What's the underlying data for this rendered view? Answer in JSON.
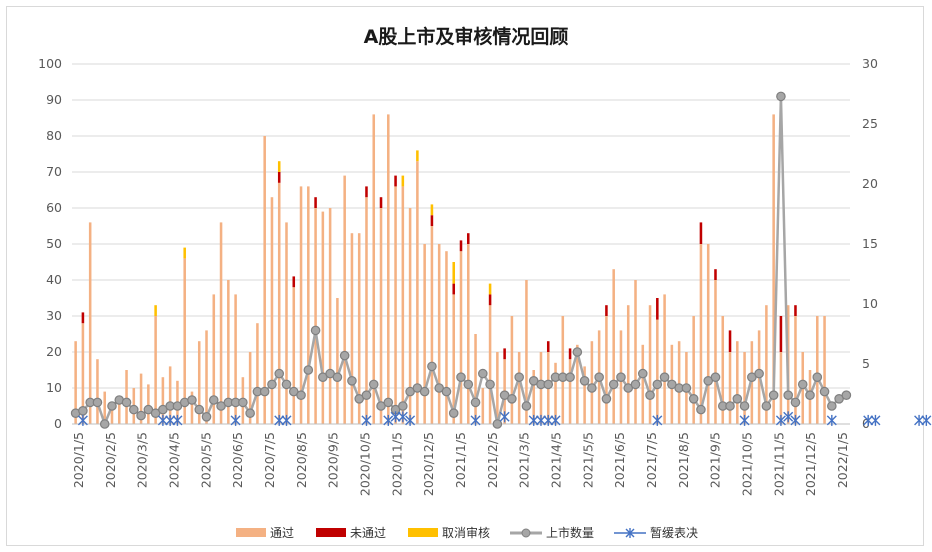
{
  "chart_data": {
    "type": "bar",
    "title": "A股上市及审核情况回顾",
    "ylim_left": [
      0,
      100
    ],
    "yticks_left": [
      "0",
      "10",
      "20",
      "30",
      "40",
      "50",
      "60",
      "70",
      "80",
      "90",
      "100"
    ],
    "ylim_right": [
      0,
      30
    ],
    "yticks_right": [
      "0",
      "5",
      "10",
      "15",
      "20",
      "25",
      "30"
    ],
    "x_tick_labels": [
      "2020/1/5",
      "2020/2/5",
      "2020/3/5",
      "2020/4/5",
      "2020/5/5",
      "2020/6/5",
      "2020/7/5",
      "2020/8/5",
      "2020/9/5",
      "2020/10/5",
      "2020/11/5",
      "2020/12/5",
      "2021/1/5",
      "2021/2/5",
      "2021/3/5",
      "2021/4/5",
      "2021/5/5",
      "2021/6/5",
      "2021/7/5",
      "2021/8/5",
      "2021/9/5",
      "2021/10/5",
      "2021/11/5",
      "2021/12/5",
      "2022/1/5"
    ],
    "grid": true,
    "legend_position": "bottom",
    "colors": {
      "pass": "#f4b183",
      "reject": "#c00000",
      "cancel": "#ffc000",
      "listing": "#a6a6a6",
      "postpone": "#4472c4"
    },
    "series": [
      {
        "name": "通过",
        "type": "bar",
        "axis": "left",
        "values": [
          23,
          28,
          56,
          18,
          9,
          6,
          6,
          15,
          10,
          14,
          11,
          30,
          13,
          16,
          12,
          46,
          9,
          23,
          26,
          36,
          56,
          40,
          36,
          13,
          20,
          28,
          80,
          63,
          67,
          56,
          38,
          66,
          66,
          60,
          59,
          60,
          35,
          69,
          53,
          53,
          63,
          86,
          60,
          86,
          66,
          66,
          60,
          73,
          50,
          55,
          50,
          48,
          36,
          48,
          50,
          25,
          10,
          33,
          20,
          18,
          30,
          20,
          40,
          15,
          20,
          20,
          17,
          30,
          18,
          22,
          16,
          23,
          26,
          30,
          43,
          26,
          33,
          40,
          22,
          33,
          29,
          36,
          22,
          23,
          20,
          30,
          50,
          50,
          40,
          30,
          20,
          23,
          20,
          23,
          26,
          33,
          86,
          20,
          33,
          30,
          20,
          15,
          30,
          30
        ]
      },
      {
        "name": "未通过",
        "type": "bar",
        "axis": "left",
        "values": [
          0,
          3,
          0,
          0,
          0,
          0,
          0,
          0,
          0,
          0,
          0,
          0,
          0,
          0,
          0,
          0,
          0,
          0,
          0,
          0,
          0,
          0,
          0,
          0,
          0,
          0,
          0,
          0,
          3,
          0,
          3,
          0,
          0,
          3,
          0,
          0,
          0,
          0,
          0,
          0,
          3,
          0,
          3,
          0,
          3,
          0,
          0,
          0,
          0,
          3,
          0,
          0,
          3,
          3,
          3,
          0,
          0,
          3,
          0,
          3,
          0,
          0,
          0,
          0,
          0,
          3,
          0,
          0,
          3,
          0,
          0,
          0,
          0,
          3,
          0,
          0,
          0,
          0,
          0,
          0,
          6,
          0,
          0,
          0,
          0,
          0,
          6,
          0,
          3,
          0,
          6,
          0,
          0,
          0,
          0,
          0,
          0,
          10,
          0,
          3,
          0,
          0,
          0,
          0
        ]
      },
      {
        "name": "取消审核",
        "type": "bar",
        "axis": "left",
        "values": [
          0,
          0,
          0,
          0,
          0,
          0,
          0,
          0,
          0,
          0,
          0,
          3,
          0,
          0,
          0,
          3,
          0,
          0,
          0,
          0,
          0,
          0,
          0,
          0,
          0,
          0,
          0,
          0,
          3,
          0,
          0,
          0,
          0,
          0,
          0,
          0,
          0,
          0,
          0,
          0,
          0,
          0,
          0,
          0,
          0,
          3,
          0,
          3,
          0,
          3,
          0,
          0,
          6,
          0,
          0,
          0,
          0,
          3,
          0,
          0,
          0,
          0,
          0,
          0,
          0,
          0,
          0,
          0,
          0,
          0,
          0,
          0,
          0,
          0,
          0,
          0,
          0,
          0,
          0,
          0,
          0,
          0,
          0,
          0,
          0,
          0,
          0,
          0,
          0,
          0,
          0,
          0,
          0,
          0,
          0,
          0,
          0,
          0,
          0,
          0,
          0,
          0,
          0,
          0
        ]
      },
      {
        "name": "上市数量",
        "type": "line",
        "axis": "right",
        "values": [
          0.9,
          1.1,
          1.8,
          1.8,
          0,
          1.5,
          2,
          1.8,
          1.2,
          0.7,
          1.2,
          0.9,
          1.2,
          1.5,
          1.5,
          1.8,
          2,
          1.2,
          0.6,
          2,
          1.5,
          1.8,
          1.8,
          1.8,
          0.9,
          2.7,
          2.7,
          3.3,
          4.2,
          3.3,
          2.7,
          2.4,
          4.5,
          7.8,
          3.9,
          4.2,
          3.9,
          5.7,
          3.6,
          2.1,
          2.4,
          3.3,
          1.5,
          1.8,
          1.2,
          1.5,
          2.7,
          3,
          2.7,
          4.8,
          3,
          2.7,
          0.9,
          3.9,
          3.3,
          1.8,
          4.2,
          3.3,
          0,
          2.4,
          2.1,
          3.9,
          1.5,
          3.6,
          3.3,
          3.3,
          3.9,
          3.9,
          3.9,
          6,
          3.6,
          3,
          3.9,
          2.1,
          3.3,
          3.9,
          3,
          3.3,
          4.2,
          2.4,
          3.3,
          3.9,
          3.3,
          3,
          3,
          2.1,
          1.2,
          3.6,
          3.9,
          1.5,
          1.5,
          2.1,
          1.5,
          3.9,
          4.2,
          1.5,
          2.4,
          27.3,
          2.4,
          1.8,
          3.3,
          2.4,
          3.9,
          2.7,
          1.5,
          2.1,
          2.4
        ]
      },
      {
        "name": "暂缓表决",
        "type": "scatter",
        "axis": "right",
        "values": [
          {
            "i": 1,
            "v": 0.3
          },
          {
            "i": 12,
            "v": 0.3
          },
          {
            "i": 13,
            "v": 0.3
          },
          {
            "i": 14,
            "v": 0.3
          },
          {
            "i": 22,
            "v": 0.3
          },
          {
            "i": 28,
            "v": 0.3
          },
          {
            "i": 29,
            "v": 0.3
          },
          {
            "i": 40,
            "v": 0.3
          },
          {
            "i": 43,
            "v": 0.3
          },
          {
            "i": 44,
            "v": 0.6
          },
          {
            "i": 45,
            "v": 0.6
          },
          {
            "i": 46,
            "v": 0.3
          },
          {
            "i": 55,
            "v": 0.3
          },
          {
            "i": 59,
            "v": 0.6
          },
          {
            "i": 63,
            "v": 0.3
          },
          {
            "i": 64,
            "v": 0.3
          },
          {
            "i": 65,
            "v": 0.3
          },
          {
            "i": 66,
            "v": 0.3
          },
          {
            "i": 80,
            "v": 0.3
          },
          {
            "i": 92,
            "v": 0.3
          },
          {
            "i": 97,
            "v": 0.3
          },
          {
            "i": 98,
            "v": 0.6
          },
          {
            "i": 99,
            "v": 0.3
          },
          {
            "i": 104,
            "v": 0.3
          },
          {
            "i": 109,
            "v": 0.3
          },
          {
            "i": 110,
            "v": 0.3
          },
          {
            "i": 116,
            "v": 0.3
          },
          {
            "i": 117,
            "v": 0.3
          },
          {
            "i": 119,
            "v": 0.3
          },
          {
            "i": 121,
            "v": 0.3
          }
        ]
      }
    ]
  },
  "legend": [
    "通过",
    "未通过",
    "取消审核",
    "上市数量",
    "暂缓表决"
  ]
}
